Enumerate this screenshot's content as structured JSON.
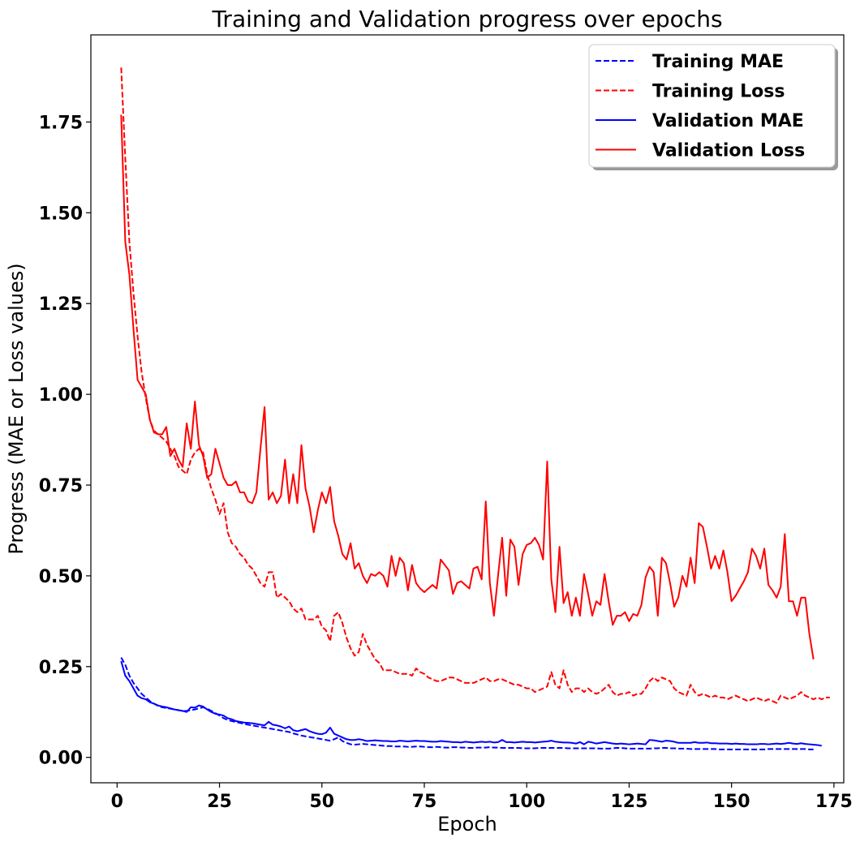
{
  "chart_data": {
    "type": "line",
    "title": "Training and Validation progress over epochs",
    "xlabel": "Epoch",
    "ylabel": "Progress (MAE or Loss values)",
    "xlim": [
      -6.4,
      177.4
    ],
    "ylim": [
      -0.07,
      1.99
    ],
    "xticks": [
      0,
      25,
      50,
      75,
      100,
      125,
      150,
      175
    ],
    "xtick_labels": [
      "0",
      "25",
      "50",
      "75",
      "100",
      "125",
      "150",
      "175"
    ],
    "yticks": [
      0.0,
      0.25,
      0.5,
      0.75,
      1.0,
      1.25,
      1.5,
      1.75
    ],
    "ytick_labels": [
      "0.00",
      "0.25",
      "0.50",
      "0.75",
      "1.00",
      "1.25",
      "1.50",
      "1.75"
    ],
    "grid": false,
    "legend_position": "top-right",
    "x_start": 1,
    "series": [
      {
        "name": "Training MAE",
        "color": "#0000ff",
        "style": "dashed",
        "values": [
          0.275,
          0.255,
          0.225,
          0.205,
          0.19,
          0.175,
          0.165,
          0.155,
          0.148,
          0.142,
          0.138,
          0.136,
          0.134,
          0.132,
          0.13,
          0.128,
          0.128,
          0.13,
          0.132,
          0.135,
          0.138,
          0.134,
          0.128,
          0.122,
          0.115,
          0.108,
          0.103,
          0.1,
          0.097,
          0.095,
          0.092,
          0.09,
          0.088,
          0.086,
          0.084,
          0.082,
          0.08,
          0.078,
          0.076,
          0.074,
          0.072,
          0.07,
          0.066,
          0.063,
          0.06,
          0.058,
          0.056,
          0.054,
          0.052,
          0.05,
          0.048,
          0.046,
          0.05,
          0.055,
          0.045,
          0.04,
          0.036,
          0.035,
          0.036,
          0.037,
          0.036,
          0.035,
          0.034,
          0.033,
          0.032,
          0.031,
          0.031,
          0.03,
          0.03,
          0.03,
          0.029,
          0.029,
          0.03,
          0.03,
          0.029,
          0.028,
          0.028,
          0.029,
          0.028,
          0.027,
          0.027,
          0.028,
          0.028,
          0.027,
          0.027,
          0.026,
          0.026,
          0.027,
          0.027,
          0.027,
          0.028,
          0.027,
          0.027,
          0.026,
          0.026,
          0.026,
          0.026,
          0.026,
          0.025,
          0.025,
          0.025,
          0.025,
          0.026,
          0.026,
          0.026,
          0.026,
          0.026,
          0.026,
          0.026,
          0.025,
          0.025,
          0.025,
          0.025,
          0.025,
          0.025,
          0.025,
          0.025,
          0.024,
          0.024,
          0.024,
          0.025,
          0.026,
          0.026,
          0.025,
          0.024,
          0.024,
          0.024,
          0.024,
          0.024,
          0.024,
          0.025,
          0.025,
          0.026,
          0.026,
          0.025,
          0.025,
          0.024,
          0.024,
          0.024,
          0.023,
          0.023,
          0.023,
          0.023,
          0.023,
          0.023,
          0.023,
          0.022,
          0.022,
          0.022,
          0.022,
          0.022,
          0.022,
          0.022,
          0.022,
          0.022,
          0.022,
          0.022,
          0.022,
          0.023,
          0.023,
          0.023,
          0.023,
          0.023,
          0.023,
          0.023,
          0.023,
          0.023,
          0.023,
          0.022,
          0.022
        ]
      },
      {
        "name": "Training Loss",
        "color": "#ff0000",
        "style": "dashed",
        "values": [
          1.9,
          1.65,
          1.42,
          1.28,
          1.16,
          1.06,
          0.99,
          0.93,
          0.9,
          0.89,
          0.88,
          0.87,
          0.85,
          0.83,
          0.8,
          0.79,
          0.78,
          0.82,
          0.84,
          0.85,
          0.84,
          0.78,
          0.74,
          0.71,
          0.67,
          0.7,
          0.62,
          0.59,
          0.58,
          0.56,
          0.55,
          0.53,
          0.52,
          0.5,
          0.48,
          0.47,
          0.51,
          0.51,
          0.44,
          0.45,
          0.44,
          0.43,
          0.41,
          0.4,
          0.41,
          0.38,
          0.38,
          0.38,
          0.39,
          0.36,
          0.35,
          0.32,
          0.39,
          0.4,
          0.37,
          0.33,
          0.3,
          0.28,
          0.29,
          0.34,
          0.31,
          0.29,
          0.27,
          0.26,
          0.24,
          0.24,
          0.24,
          0.235,
          0.23,
          0.23,
          0.23,
          0.225,
          0.245,
          0.235,
          0.23,
          0.22,
          0.215,
          0.21,
          0.21,
          0.215,
          0.22,
          0.22,
          0.215,
          0.21,
          0.205,
          0.205,
          0.205,
          0.21,
          0.215,
          0.22,
          0.21,
          0.21,
          0.215,
          0.215,
          0.21,
          0.205,
          0.2,
          0.2,
          0.195,
          0.19,
          0.19,
          0.18,
          0.185,
          0.19,
          0.195,
          0.235,
          0.2,
          0.19,
          0.24,
          0.2,
          0.18,
          0.19,
          0.19,
          0.18,
          0.19,
          0.18,
          0.175,
          0.18,
          0.19,
          0.2,
          0.18,
          0.17,
          0.175,
          0.175,
          0.18,
          0.17,
          0.175,
          0.175,
          0.19,
          0.21,
          0.22,
          0.21,
          0.22,
          0.215,
          0.21,
          0.19,
          0.18,
          0.175,
          0.17,
          0.2,
          0.18,
          0.17,
          0.175,
          0.17,
          0.165,
          0.17,
          0.165,
          0.165,
          0.16,
          0.165,
          0.17,
          0.165,
          0.16,
          0.155,
          0.16,
          0.165,
          0.16,
          0.155,
          0.16,
          0.155,
          0.15,
          0.17,
          0.165,
          0.16,
          0.165,
          0.17,
          0.18,
          0.17,
          0.165,
          0.16,
          0.165,
          0.16,
          0.165,
          0.165
        ]
      },
      {
        "name": "Validation MAE",
        "color": "#0000ff",
        "style": "solid",
        "values": [
          0.265,
          0.225,
          0.21,
          0.19,
          0.17,
          0.163,
          0.16,
          0.152,
          0.148,
          0.143,
          0.14,
          0.138,
          0.135,
          0.132,
          0.13,
          0.128,
          0.125,
          0.138,
          0.137,
          0.143,
          0.14,
          0.132,
          0.125,
          0.12,
          0.118,
          0.115,
          0.108,
          0.105,
          0.1,
          0.098,
          0.096,
          0.095,
          0.094,
          0.092,
          0.09,
          0.088,
          0.098,
          0.09,
          0.088,
          0.085,
          0.08,
          0.085,
          0.075,
          0.072,
          0.075,
          0.078,
          0.072,
          0.068,
          0.065,
          0.064,
          0.068,
          0.082,
          0.065,
          0.06,
          0.055,
          0.05,
          0.048,
          0.048,
          0.05,
          0.048,
          0.045,
          0.046,
          0.047,
          0.046,
          0.045,
          0.045,
          0.044,
          0.044,
          0.046,
          0.045,
          0.044,
          0.045,
          0.046,
          0.045,
          0.045,
          0.044,
          0.043,
          0.043,
          0.045,
          0.044,
          0.043,
          0.042,
          0.042,
          0.041,
          0.043,
          0.042,
          0.041,
          0.042,
          0.043,
          0.042,
          0.043,
          0.041,
          0.042,
          0.048,
          0.042,
          0.042,
          0.041,
          0.042,
          0.043,
          0.042,
          0.042,
          0.041,
          0.042,
          0.043,
          0.044,
          0.046,
          0.043,
          0.042,
          0.041,
          0.041,
          0.04,
          0.038,
          0.042,
          0.036,
          0.043,
          0.041,
          0.038,
          0.04,
          0.042,
          0.04,
          0.038,
          0.037,
          0.038,
          0.037,
          0.036,
          0.037,
          0.038,
          0.037,
          0.036,
          0.048,
          0.047,
          0.045,
          0.043,
          0.046,
          0.045,
          0.043,
          0.04,
          0.04,
          0.04,
          0.04,
          0.042,
          0.04,
          0.04,
          0.041,
          0.039,
          0.039,
          0.038,
          0.038,
          0.038,
          0.037,
          0.038,
          0.037,
          0.037,
          0.036,
          0.036,
          0.036,
          0.037,
          0.037,
          0.036,
          0.037,
          0.038,
          0.037,
          0.038,
          0.04,
          0.038,
          0.037,
          0.039,
          0.037,
          0.036,
          0.035,
          0.034,
          0.032
        ]
      },
      {
        "name": "Validation Loss",
        "color": "#ff0000",
        "style": "solid",
        "values": [
          1.77,
          1.42,
          1.33,
          1.18,
          1.04,
          1.02,
          1.0,
          0.93,
          0.895,
          0.89,
          0.89,
          0.91,
          0.83,
          0.85,
          0.82,
          0.8,
          0.92,
          0.85,
          0.98,
          0.86,
          0.83,
          0.77,
          0.78,
          0.85,
          0.81,
          0.77,
          0.75,
          0.75,
          0.76,
          0.73,
          0.73,
          0.705,
          0.7,
          0.73,
          0.85,
          0.965,
          0.71,
          0.73,
          0.7,
          0.72,
          0.82,
          0.7,
          0.78,
          0.7,
          0.86,
          0.74,
          0.69,
          0.62,
          0.68,
          0.73,
          0.7,
          0.745,
          0.65,
          0.61,
          0.56,
          0.545,
          0.59,
          0.52,
          0.535,
          0.5,
          0.48,
          0.505,
          0.5,
          0.51,
          0.5,
          0.47,
          0.555,
          0.5,
          0.55,
          0.535,
          0.46,
          0.53,
          0.48,
          0.465,
          0.455,
          0.465,
          0.475,
          0.465,
          0.545,
          0.53,
          0.515,
          0.45,
          0.48,
          0.485,
          0.475,
          0.465,
          0.52,
          0.525,
          0.49,
          0.705,
          0.48,
          0.39,
          0.5,
          0.605,
          0.445,
          0.6,
          0.58,
          0.475,
          0.56,
          0.585,
          0.59,
          0.605,
          0.585,
          0.545,
          0.815,
          0.49,
          0.4,
          0.58,
          0.425,
          0.455,
          0.39,
          0.44,
          0.39,
          0.505,
          0.45,
          0.39,
          0.43,
          0.42,
          0.505,
          0.43,
          0.365,
          0.39,
          0.39,
          0.4,
          0.375,
          0.395,
          0.39,
          0.42,
          0.495,
          0.525,
          0.51,
          0.39,
          0.55,
          0.535,
          0.48,
          0.415,
          0.44,
          0.5,
          0.47,
          0.55,
          0.48,
          0.645,
          0.635,
          0.58,
          0.52,
          0.555,
          0.52,
          0.57,
          0.51,
          0.43,
          0.445,
          0.465,
          0.485,
          0.51,
          0.575,
          0.555,
          0.52,
          0.575,
          0.475,
          0.46,
          0.44,
          0.47,
          0.615,
          0.43,
          0.43,
          0.39,
          0.44,
          0.44,
          0.34,
          0.27
        ]
      }
    ]
  }
}
